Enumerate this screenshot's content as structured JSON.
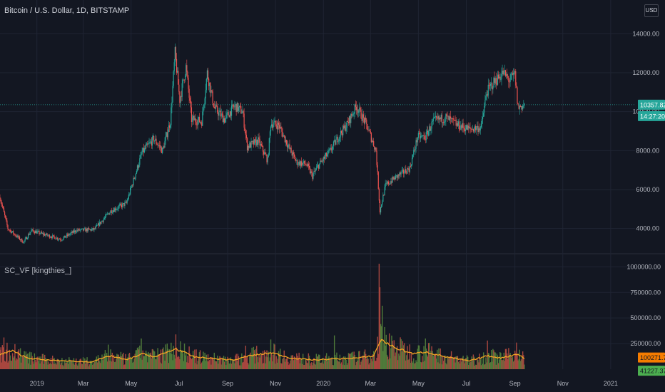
{
  "header": {
    "symbol_title": "Bitcoin / U.S. Dollar, 1D, BITSTAMP",
    "currency_button": "USD"
  },
  "indicator": {
    "title": "SC_VF [kingthies_]"
  },
  "colors": {
    "background": "#131722",
    "grid": "#1f2433",
    "axis_text": "#b2b5be",
    "up": "#26a69a",
    "down": "#ef5350",
    "volume_up": "#4f7a3a",
    "volume_down": "#a8463f",
    "ma_line": "#f5a623",
    "price_line": "#26a69a",
    "ma_badge": "#f57c00",
    "vol_badge": "#4caf50"
  },
  "chart_data": [
    {
      "type": "candlestick",
      "title": "Bitcoin / U.S. Dollar, 1D, BITSTAMP",
      "x_range": [
        "2018-11-15",
        "2021-02-01"
      ],
      "x_ticks": [
        {
          "date": "2019-01-01",
          "label": "2019"
        },
        {
          "date": "2019-03-01",
          "label": "Mar"
        },
        {
          "date": "2019-05-01",
          "label": "May"
        },
        {
          "date": "2019-07-01",
          "label": "Jul"
        },
        {
          "date": "2019-09-01",
          "label": "Sep"
        },
        {
          "date": "2019-11-01",
          "label": "Nov"
        },
        {
          "date": "2020-01-01",
          "label": "2020"
        },
        {
          "date": "2020-03-01",
          "label": "Mar"
        },
        {
          "date": "2020-05-01",
          "label": "May"
        },
        {
          "date": "2020-07-01",
          "label": "Jul"
        },
        {
          "date": "2020-09-01",
          "label": "Sep"
        },
        {
          "date": "2020-11-01",
          "label": "Nov"
        },
        {
          "date": "2021-01-01",
          "label": "2021"
        }
      ],
      "y_range": [
        3000,
        15000
      ],
      "y_ticks": [
        {
          "value": 4000,
          "label": "4000.00"
        },
        {
          "value": 6000,
          "label": "6000.00"
        },
        {
          "value": 8000,
          "label": "8000.00"
        },
        {
          "value": 10000,
          "label": "10000.00"
        },
        {
          "value": 12000,
          "label": "12000.00"
        },
        {
          "value": 14000,
          "label": "14000.00"
        }
      ],
      "last_price": {
        "value": 10357.82,
        "label": "10357.82",
        "countdown": "14:27:20"
      },
      "close_path": [
        [
          "2018-11-15",
          5600
        ],
        [
          "2018-11-25",
          4000
        ],
        [
          "2018-12-15",
          3300
        ],
        [
          "2018-12-25",
          3900
        ],
        [
          "2019-01-10",
          3700
        ],
        [
          "2019-02-01",
          3450
        ],
        [
          "2019-02-20",
          3900
        ],
        [
          "2019-03-15",
          3950
        ],
        [
          "2019-04-05",
          4900
        ],
        [
          "2019-04-25",
          5300
        ],
        [
          "2019-05-15",
          7900
        ],
        [
          "2019-05-30",
          8600
        ],
        [
          "2019-06-10",
          8000
        ],
        [
          "2019-06-20",
          9500
        ],
        [
          "2019-06-26",
          13000
        ],
        [
          "2019-07-02",
          10600
        ],
        [
          "2019-07-10",
          12300
        ],
        [
          "2019-07-17",
          9600
        ],
        [
          "2019-07-30",
          9500
        ],
        [
          "2019-08-06",
          12000
        ],
        [
          "2019-08-15",
          10200
        ],
        [
          "2019-08-28",
          9600
        ],
        [
          "2019-09-10",
          10300
        ],
        [
          "2019-09-20",
          10000
        ],
        [
          "2019-09-26",
          8200
        ],
        [
          "2019-10-10",
          8500
        ],
        [
          "2019-10-22",
          7500
        ],
        [
          "2019-10-26",
          9400
        ],
        [
          "2019-11-05",
          9300
        ],
        [
          "2019-11-20",
          8000
        ],
        [
          "2019-11-28",
          7400
        ],
        [
          "2019-12-10",
          7300
        ],
        [
          "2019-12-18",
          6700
        ],
        [
          "2019-12-25",
          7200
        ],
        [
          "2020-01-10",
          8000
        ],
        [
          "2020-01-20",
          8700
        ],
        [
          "2020-02-01",
          9400
        ],
        [
          "2020-02-12",
          10300
        ],
        [
          "2020-02-25",
          9300
        ],
        [
          "2020-03-08",
          8000
        ],
        [
          "2020-03-13",
          4900
        ],
        [
          "2020-03-20",
          6200
        ],
        [
          "2020-04-01",
          6600
        ],
        [
          "2020-04-20",
          7100
        ],
        [
          "2020-04-30",
          8700
        ],
        [
          "2020-05-10",
          8700
        ],
        [
          "2020-05-20",
          9500
        ],
        [
          "2020-06-05",
          9700
        ],
        [
          "2020-06-20",
          9300
        ],
        [
          "2020-07-05",
          9100
        ],
        [
          "2020-07-20",
          9200
        ],
        [
          "2020-07-27",
          11000
        ],
        [
          "2020-08-05",
          11500
        ],
        [
          "2020-08-17",
          12000
        ],
        [
          "2020-08-25",
          11600
        ],
        [
          "2020-09-01",
          11900
        ],
        [
          "2020-09-05",
          10200
        ],
        [
          "2020-09-13",
          10357.82
        ]
      ]
    },
    {
      "type": "bar",
      "title": "SC_VF [kingthies_]",
      "y_range": [
        0,
        1100000
      ],
      "y_ticks": [
        {
          "value": 250000,
          "label": "250000.00"
        },
        {
          "value": 500000,
          "label": "500000.00"
        },
        {
          "value": 750000,
          "label": "750000.00"
        },
        {
          "value": 1000000,
          "label": "1000000.00"
        }
      ],
      "last_ma": {
        "value": 100271.72,
        "label": "100271.72"
      },
      "last_volume": {
        "value": 41227.37,
        "label": "41227.37"
      },
      "volume_ma_path": [
        [
          "2018-11-15",
          140000
        ],
        [
          "2018-11-30",
          180000
        ],
        [
          "2018-12-20",
          110000
        ],
        [
          "2019-01-10",
          90000
        ],
        [
          "2019-02-10",
          80000
        ],
        [
          "2019-03-10",
          70000
        ],
        [
          "2019-04-05",
          130000
        ],
        [
          "2019-04-25",
          90000
        ],
        [
          "2019-05-15",
          150000
        ],
        [
          "2019-06-01",
          120000
        ],
        [
          "2019-06-27",
          200000
        ],
        [
          "2019-07-20",
          120000
        ],
        [
          "2019-08-20",
          100000
        ],
        [
          "2019-09-10",
          90000
        ],
        [
          "2019-09-28",
          130000
        ],
        [
          "2019-10-27",
          160000
        ],
        [
          "2019-11-20",
          110000
        ],
        [
          "2019-12-20",
          90000
        ],
        [
          "2020-01-15",
          100000
        ],
        [
          "2020-02-15",
          110000
        ],
        [
          "2020-03-05",
          130000
        ],
        [
          "2020-03-14",
          290000
        ],
        [
          "2020-04-01",
          210000
        ],
        [
          "2020-04-25",
          150000
        ],
        [
          "2020-05-10",
          170000
        ],
        [
          "2020-06-05",
          120000
        ],
        [
          "2020-07-05",
          80000
        ],
        [
          "2020-07-27",
          130000
        ],
        [
          "2020-08-15",
          110000
        ],
        [
          "2020-09-05",
          150000
        ],
        [
          "2020-09-13",
          100271.72
        ]
      ],
      "volume_spikes": [
        [
          "2018-11-20",
          310000
        ],
        [
          "2019-04-02",
          240000
        ],
        [
          "2019-05-14",
          300000
        ],
        [
          "2019-06-27",
          340000
        ],
        [
          "2019-09-24",
          230000
        ],
        [
          "2019-10-26",
          290000
        ],
        [
          "2020-01-15",
          330000
        ],
        [
          "2020-03-12",
          1030000
        ],
        [
          "2020-03-13",
          800000
        ],
        [
          "2020-03-16",
          620000
        ],
        [
          "2020-05-10",
          300000
        ],
        [
          "2020-07-28",
          280000
        ],
        [
          "2020-09-03",
          260000
        ]
      ]
    }
  ]
}
